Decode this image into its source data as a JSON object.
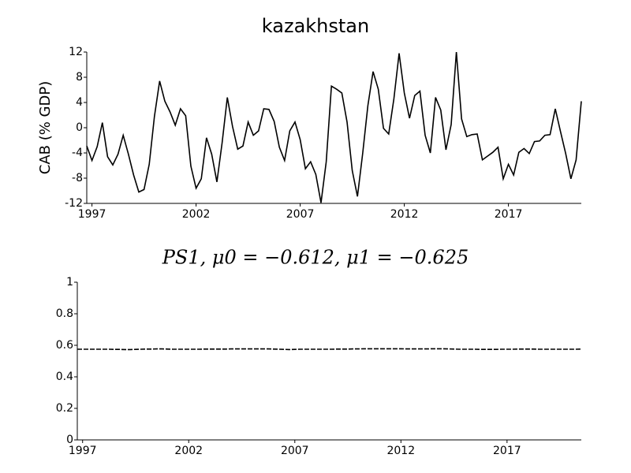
{
  "chart_data": [
    {
      "type": "line",
      "title": "kazakhstan",
      "ylabel": "CAB (% GDP)",
      "x": [
        1996.75,
        1997,
        1997.25,
        1997.5,
        1997.75,
        1998,
        1998.25,
        1998.5,
        1998.75,
        1999,
        1999.25,
        1999.5,
        1999.75,
        2000,
        2000.25,
        2000.5,
        2000.75,
        2001,
        2001.25,
        2001.5,
        2001.75,
        2002,
        2002.25,
        2002.5,
        2002.75,
        2003,
        2003.25,
        2003.5,
        2003.75,
        2004,
        2004.25,
        2004.5,
        2004.75,
        2005,
        2005.25,
        2005.5,
        2005.75,
        2006,
        2006.25,
        2006.5,
        2006.75,
        2007,
        2007.25,
        2007.5,
        2007.75,
        2008,
        2008.25,
        2008.5,
        2008.75,
        2009,
        2009.25,
        2009.5,
        2009.75,
        2010,
        2010.25,
        2010.5,
        2010.75,
        2011,
        2011.25,
        2011.5,
        2011.75,
        2012,
        2012.25,
        2012.5,
        2012.75,
        2013,
        2013.25,
        2013.5,
        2013.75,
        2014,
        2014.25,
        2014.5,
        2014.75,
        2015,
        2015.25,
        2015.5,
        2015.75,
        2016,
        2016.25,
        2016.5,
        2016.75,
        2017,
        2017.25,
        2017.5,
        2017.75,
        2018,
        2018.25,
        2018.5,
        2018.75,
        2019,
        2019.25,
        2019.5,
        2019.75,
        2020,
        2020.25,
        2020.5
      ],
      "series": [
        {
          "color": "#000000",
          "linestyle": "solid",
          "values": [
            -2.9,
            -5.2,
            -3,
            0.8,
            -4.6,
            -5.9,
            -4.2,
            -1.2,
            -4.2,
            -7.5,
            -10.2,
            -9.8,
            -5.8,
            1.8,
            7.4,
            4.2,
            2.5,
            0.4,
            3,
            1.9,
            -6.1,
            -9.6,
            -8.1,
            -1.6,
            -4.2,
            -8.6,
            -2.4,
            4.8,
            0.2,
            -3.4,
            -2.9,
            0.9,
            -1.2,
            -0.5,
            3,
            2.9,
            1,
            -3.1,
            -5.2,
            -0.5,
            0.9,
            -1.9,
            -6.5,
            -5.4,
            -7.4,
            -11.9,
            -5.4,
            6.6,
            6.1,
            5.5,
            0.9,
            -6.8,
            -10.9,
            -4.1,
            3.5,
            8.9,
            6.1,
            -0.1,
            -1,
            4.6,
            11.8,
            5.5,
            1.5,
            5.1,
            5.8,
            -1.2,
            -4,
            4.8,
            2.8,
            -3.5,
            0.5,
            12,
            1.4,
            -1.4,
            -1.1,
            -1,
            -5.1,
            -4.5,
            -3.9,
            -3.1,
            -8.1,
            -5.8,
            -7.5,
            -3.9,
            -3.3,
            -4.1,
            -2.2,
            -2.1,
            -1.2,
            -1.1,
            3,
            -0.6,
            -4.1,
            -8.1,
            -5.1,
            4.2
          ]
        }
      ],
      "xlim": [
        1996.75,
        2020.5
      ],
      "xticks": [
        1997,
        2002,
        2007,
        2012,
        2017
      ],
      "ylim": [
        -12,
        12
      ],
      "yticks": [
        -12,
        -8,
        -4,
        0,
        4,
        8,
        12
      ]
    },
    {
      "type": "line",
      "title": "PS1, μ0 = −0.612, μ1 = −0.625",
      "x": [
        1996.75,
        1997,
        1997.25,
        1997.5,
        1997.75,
        1998,
        1998.25,
        1998.5,
        1998.75,
        1999,
        1999.25,
        1999.5,
        1999.75,
        2000,
        2000.25,
        2000.5,
        2000.75,
        2001,
        2001.25,
        2001.5,
        2001.75,
        2002,
        2002.25,
        2002.5,
        2002.75,
        2003,
        2003.25,
        2003.5,
        2003.75,
        2004,
        2004.25,
        2004.5,
        2004.75,
        2005,
        2005.25,
        2005.5,
        2005.75,
        2006,
        2006.25,
        2006.5,
        2006.75,
        2007,
        2007.25,
        2007.5,
        2007.75,
        2008,
        2008.25,
        2008.5,
        2008.75,
        2009,
        2009.25,
        2009.5,
        2009.75,
        2010,
        2010.25,
        2010.5,
        2010.75,
        2011,
        2011.25,
        2011.5,
        2011.75,
        2012,
        2012.25,
        2012.5,
        2012.75,
        2013,
        2013.25,
        2013.5,
        2013.75,
        2014,
        2014.25,
        2014.5,
        2014.75,
        2015,
        2015.25,
        2015.5,
        2015.75,
        2016,
        2016.25,
        2016.5,
        2016.75,
        2017,
        2017.25,
        2017.5,
        2017.75,
        2018,
        2018.25,
        2018.5,
        2018.75,
        2019,
        2019.25,
        2019.5,
        2019.75,
        2020,
        2020.25,
        2020.5
      ],
      "series": [
        {
          "color": "#000000",
          "linestyle": "dashed",
          "values": [
            0.575,
            0.575,
            0.575,
            0.575,
            0.575,
            0.575,
            0.575,
            0.574,
            0.574,
            0.573,
            0.573,
            0.574,
            0.575,
            0.576,
            0.576,
            0.577,
            0.577,
            0.576,
            0.575,
            0.575,
            0.575,
            0.575,
            0.575,
            0.575,
            0.576,
            0.576,
            0.576,
            0.576,
            0.576,
            0.577,
            0.577,
            0.577,
            0.577,
            0.577,
            0.577,
            0.577,
            0.577,
            0.576,
            0.575,
            0.574,
            0.573,
            0.574,
            0.575,
            0.575,
            0.575,
            0.575,
            0.575,
            0.575,
            0.575,
            0.576,
            0.576,
            0.576,
            0.577,
            0.577,
            0.578,
            0.578,
            0.578,
            0.578,
            0.578,
            0.578,
            0.578,
            0.578,
            0.577,
            0.577,
            0.577,
            0.577,
            0.577,
            0.578,
            0.578,
            0.578,
            0.577,
            0.576,
            0.575,
            0.575,
            0.575,
            0.575,
            0.574,
            0.574,
            0.574,
            0.574,
            0.575,
            0.575,
            0.575,
            0.576,
            0.576,
            0.576,
            0.576,
            0.575,
            0.575,
            0.575,
            0.575,
            0.575,
            0.575,
            0.575,
            0.575,
            0.576
          ]
        }
      ],
      "xlim": [
        1996.75,
        2020.5
      ],
      "xticks": [
        1997,
        2002,
        2007,
        2012,
        2017
      ],
      "ylim": [
        0,
        1
      ],
      "yticks": [
        0,
        0.2,
        0.4,
        0.6,
        0.8,
        1
      ]
    }
  ]
}
